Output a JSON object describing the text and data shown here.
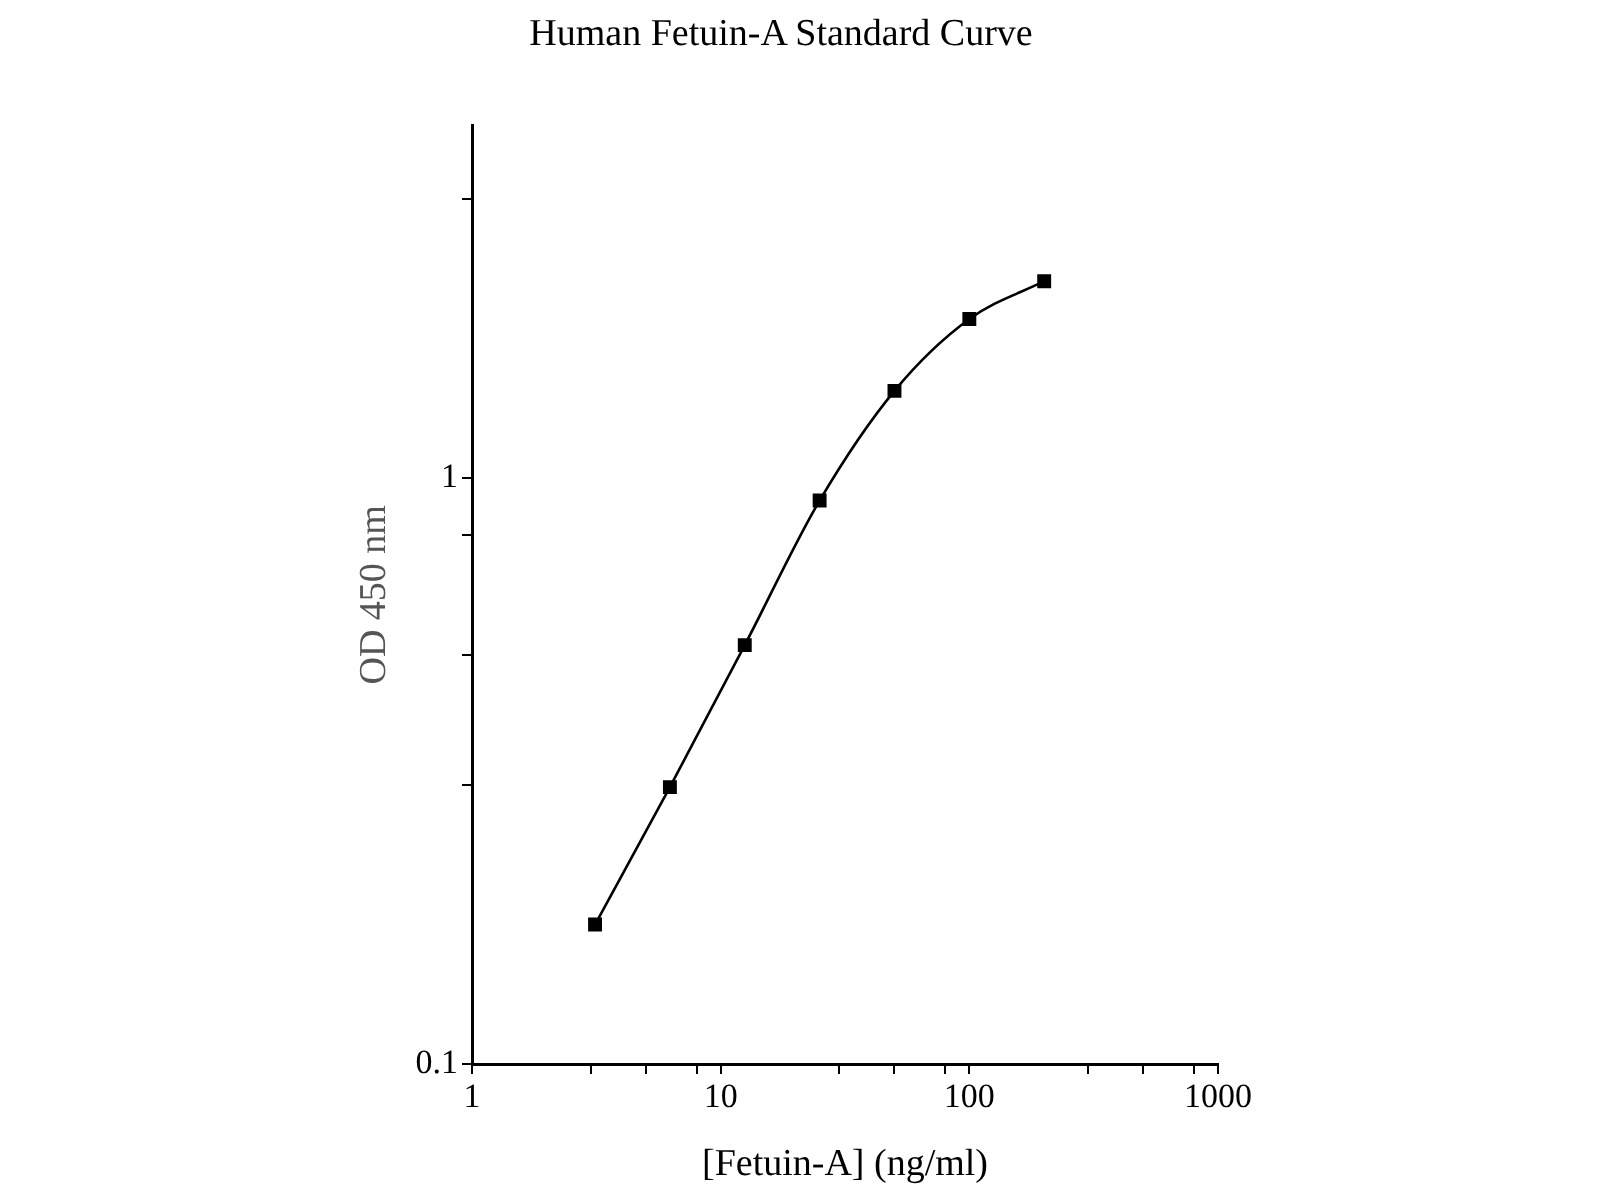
{
  "chart_data": {
    "type": "line",
    "title": "Human Fetuin-A Standard Curve",
    "xlabel": "[Fetuin-A] (ng/ml)",
    "ylabel": "OD 450 nm",
    "log": "xy",
    "marker": "square",
    "x": [
      3.125,
      6.25,
      12.5,
      25,
      50,
      100,
      200
    ],
    "series": [
      {
        "color": "#000000",
        "values": [
          0.173,
          0.297,
          0.519,
          0.916,
          1.41,
          1.87,
          2.17
        ]
      }
    ],
    "xlim": [
      1,
      1000
    ],
    "xticks": [
      1,
      {
        "value": 3,
        "label": null
      },
      {
        "value": 5,
        "label": null
      },
      {
        "value": 8,
        "label": null
      },
      10,
      {
        "value": 30,
        "label": null
      },
      {
        "value": 50,
        "label": null
      },
      {
        "value": 80,
        "label": null
      },
      100,
      {
        "value": 300,
        "label": null
      },
      {
        "value": 500,
        "label": null
      },
      {
        "value": 800,
        "label": null
      },
      1000
    ],
    "ylim": [
      0.1,
      4
    ],
    "yticks": [
      0.1,
      {
        "value": 0.3,
        "label": null
      },
      {
        "value": 0.5,
        "label": null
      },
      {
        "value": 0.8,
        "label": null
      },
      1,
      {
        "value": 3,
        "label": null
      }
    ]
  }
}
